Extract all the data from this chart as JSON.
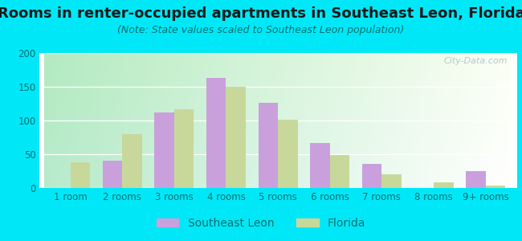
{
  "title": "Rooms in renter-occupied apartments in Southeast Leon, Florida",
  "subtitle": "(Note: State values scaled to Southeast Leon population)",
  "categories": [
    "1 room",
    "2 rooms",
    "3 rooms",
    "4 rooms",
    "5 rooms",
    "6 rooms",
    "7 rooms",
    "8 rooms",
    "9+ rooms"
  ],
  "southeast_leon": [
    0,
    40,
    112,
    163,
    126,
    67,
    36,
    0,
    25
  ],
  "florida": [
    38,
    80,
    117,
    150,
    101,
    49,
    20,
    8,
    4
  ],
  "southeast_leon_color": "#c9a0dc",
  "florida_color": "#c8d89a",
  "background_outer": "#00e8f8",
  "ylim": [
    0,
    200
  ],
  "yticks": [
    0,
    50,
    100,
    150,
    200
  ],
  "bar_width": 0.38,
  "watermark": "City-Data.com",
  "title_fontsize": 13,
  "subtitle_fontsize": 9,
  "legend_fontsize": 10,
  "axis_fontsize": 8.5,
  "tick_color": "#007070",
  "title_color": "#1a1a1a",
  "subtitle_color": "#007070"
}
